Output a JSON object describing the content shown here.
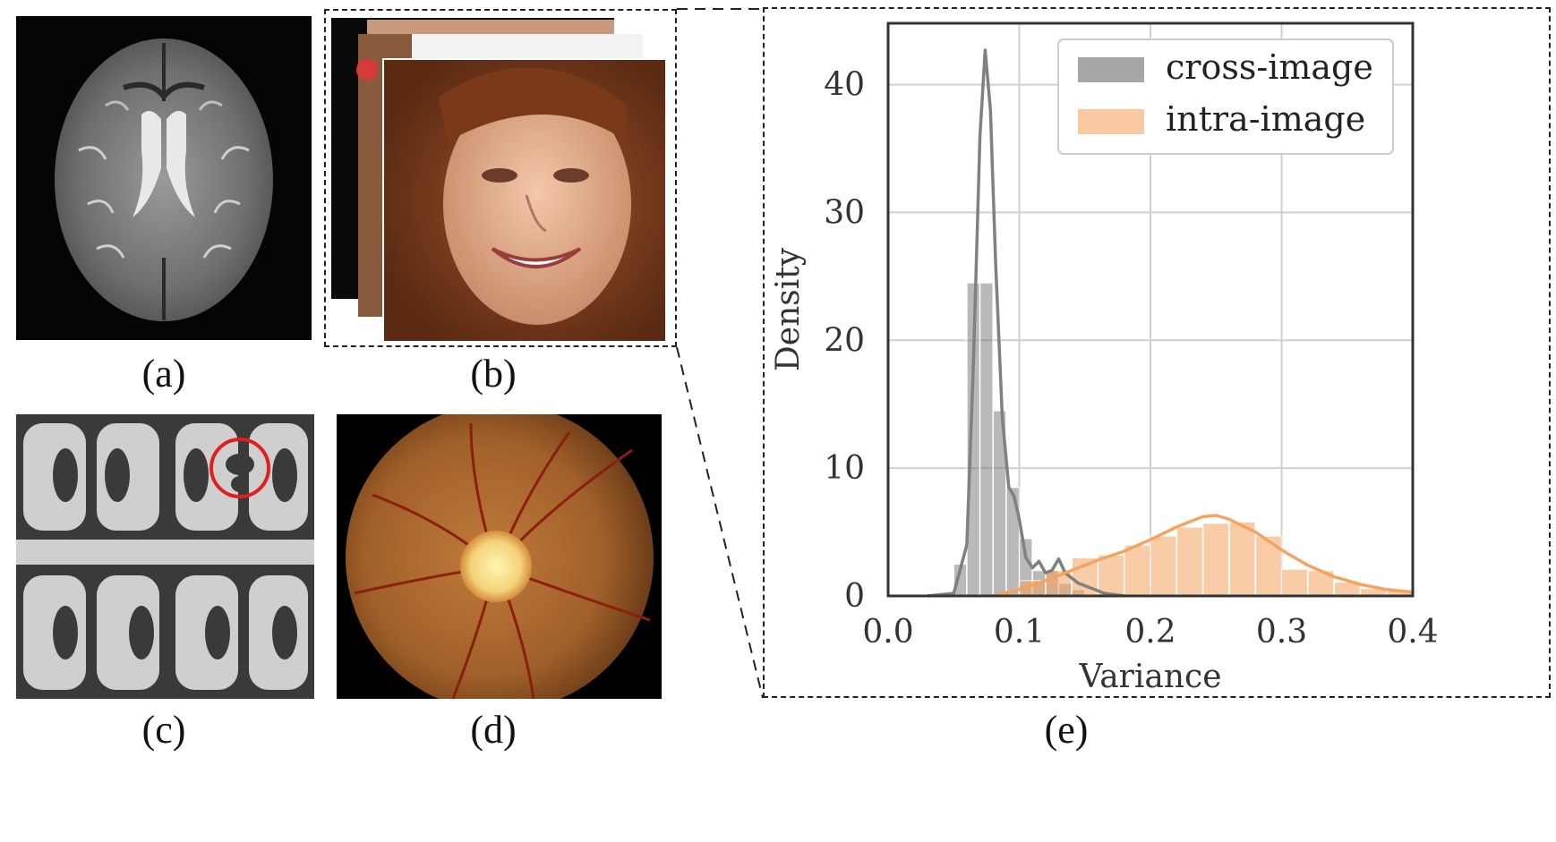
{
  "panels": {
    "a": {
      "caption": "(a)",
      "subject": "axial brain MRI slice"
    },
    "b": {
      "caption": "(b)",
      "subject": "stack of face photographs"
    },
    "c": {
      "caption": "(c)",
      "subject": "grayscale microscopy pattern with red circle marking a defect"
    },
    "d": {
      "caption": "(d)",
      "subject": "retinal fundus photograph"
    },
    "e": {
      "caption": "(e)"
    }
  },
  "colors": {
    "cross_image": "#808080",
    "intra_image": "#f4a460",
    "circle": "#e0201e"
  },
  "chart_data": {
    "type": "histogram+kde",
    "xlabel": "Variance",
    "ylabel": "Density",
    "xlim": [
      0.0,
      0.4
    ],
    "ylim": [
      0,
      44
    ],
    "xticks": [
      "0.0",
      "0.1",
      "0.2",
      "0.3",
      "0.4"
    ],
    "yticks": [
      "0",
      "10",
      "20",
      "30",
      "40"
    ],
    "grid": true,
    "legend_position": "top-right",
    "series": [
      {
        "name": "cross-image",
        "color": "#808080",
        "bin_width": 0.01,
        "bins": [
          [
            0.055,
            2.5
          ],
          [
            0.065,
            24.5
          ],
          [
            0.075,
            24.5
          ],
          [
            0.085,
            14.5
          ],
          [
            0.095,
            8.5
          ],
          [
            0.105,
            4.5
          ],
          [
            0.115,
            2.0
          ],
          [
            0.125,
            2.0
          ],
          [
            0.135,
            1.0
          ],
          [
            0.145,
            0.5
          ]
        ],
        "kde": [
          [
            0.03,
            0.0
          ],
          [
            0.05,
            0.2
          ],
          [
            0.06,
            4.0
          ],
          [
            0.065,
            18.0
          ],
          [
            0.07,
            36.0
          ],
          [
            0.074,
            42.7
          ],
          [
            0.078,
            38.0
          ],
          [
            0.082,
            26.0
          ],
          [
            0.087,
            14.0
          ],
          [
            0.092,
            8.5
          ],
          [
            0.096,
            7.8
          ],
          [
            0.1,
            6.0
          ],
          [
            0.105,
            3.0
          ],
          [
            0.11,
            2.2
          ],
          [
            0.115,
            2.7
          ],
          [
            0.12,
            1.8
          ],
          [
            0.125,
            2.0
          ],
          [
            0.13,
            2.9
          ],
          [
            0.135,
            1.8
          ],
          [
            0.145,
            1.0
          ],
          [
            0.155,
            0.6
          ],
          [
            0.165,
            0.2
          ],
          [
            0.18,
            0.0
          ]
        ]
      },
      {
        "name": "intra-image",
        "color": "#f4a460",
        "bin_width": 0.02,
        "bins": [
          [
            0.11,
            1.2
          ],
          [
            0.13,
            2.0
          ],
          [
            0.15,
            3.0
          ],
          [
            0.17,
            3.2
          ],
          [
            0.19,
            4.0
          ],
          [
            0.21,
            4.7
          ],
          [
            0.23,
            5.4
          ],
          [
            0.25,
            5.7
          ],
          [
            0.27,
            5.8
          ],
          [
            0.29,
            4.7
          ],
          [
            0.31,
            2.1
          ],
          [
            0.33,
            2.0
          ],
          [
            0.35,
            1.1
          ],
          [
            0.37,
            0.6
          ],
          [
            0.39,
            0.4
          ]
        ],
        "kde": [
          [
            0.08,
            0.0
          ],
          [
            0.1,
            0.5
          ],
          [
            0.12,
            1.2
          ],
          [
            0.14,
            2.0
          ],
          [
            0.16,
            2.8
          ],
          [
            0.18,
            3.5
          ],
          [
            0.2,
            4.4
          ],
          [
            0.22,
            5.4
          ],
          [
            0.24,
            6.2
          ],
          [
            0.25,
            6.3
          ],
          [
            0.26,
            6.0
          ],
          [
            0.28,
            5.0
          ],
          [
            0.3,
            3.6
          ],
          [
            0.32,
            2.4
          ],
          [
            0.34,
            1.5
          ],
          [
            0.36,
            0.9
          ],
          [
            0.38,
            0.5
          ],
          [
            0.4,
            0.3
          ]
        ]
      }
    ]
  }
}
